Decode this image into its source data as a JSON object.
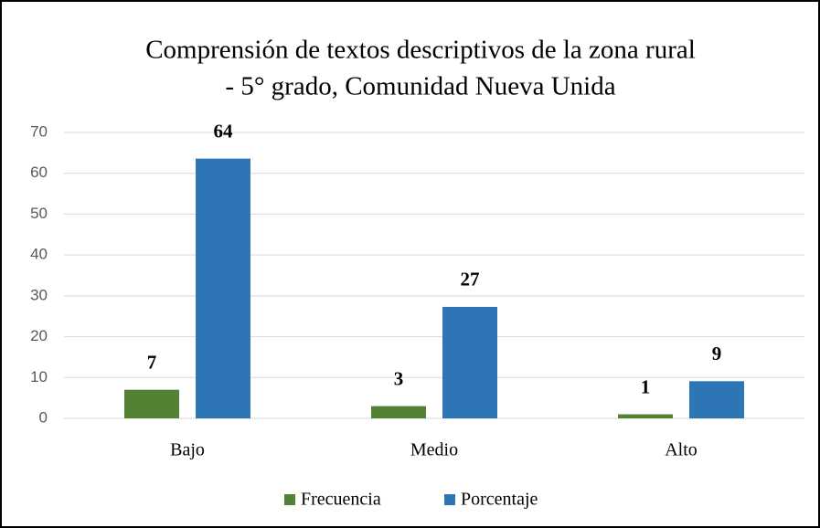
{
  "chart_data": {
    "type": "bar",
    "title": [
      "Comprensión de textos descriptivos de la zona rural",
      "- 5° grado, Comunidad Nueva Unida"
    ],
    "categories": [
      "Bajo",
      "Medio",
      "Alto"
    ],
    "series": [
      {
        "name": "Frecuencia",
        "color": "#548235",
        "values": [
          7,
          3,
          1
        ]
      },
      {
        "name": "Porcentaje",
        "color": "#2e75b6",
        "values": [
          63.6,
          27.3,
          9.1
        ],
        "value_labels": [
          "64",
          "27",
          "9"
        ]
      }
    ],
    "ylim": [
      0,
      70
    ],
    "yticks": [
      0,
      10,
      20,
      30,
      40,
      50,
      60,
      70
    ],
    "grid": true,
    "legend": "bottom"
  }
}
